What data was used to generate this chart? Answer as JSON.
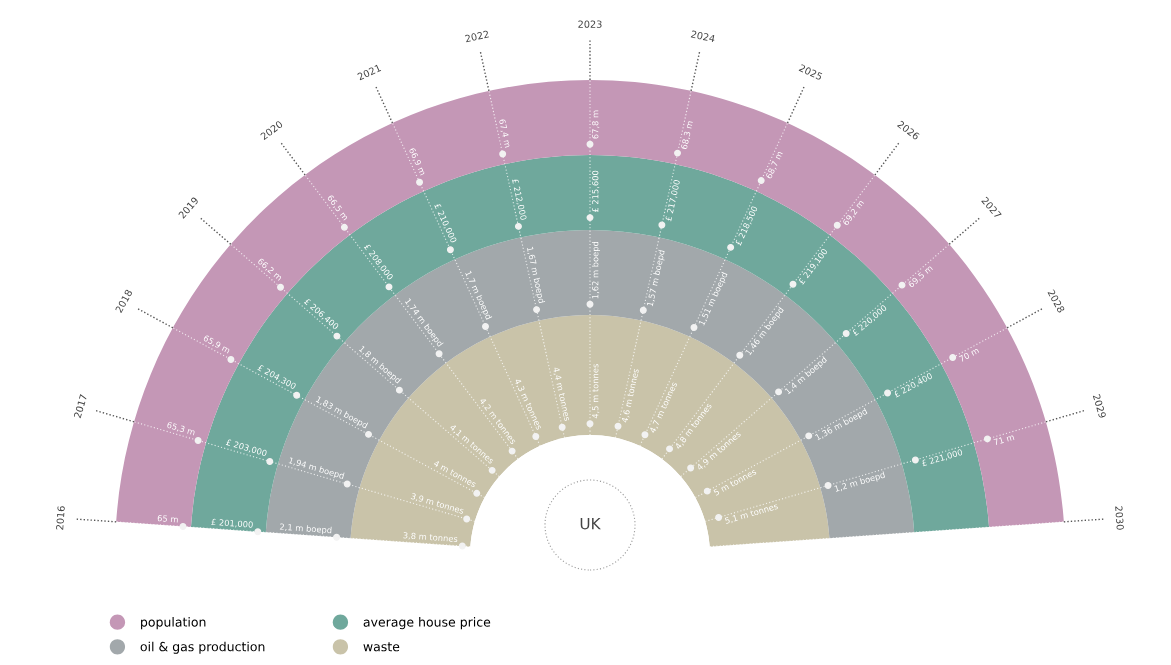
{
  "chart_data": {
    "type": "other",
    "categories": [
      "2016",
      "2017",
      "2018",
      "2019",
      "2020",
      "2021",
      "2022",
      "2023",
      "2024",
      "2025",
      "2026",
      "2027",
      "2028",
      "2029",
      "2030"
    ],
    "annotations": [
      "UK"
    ],
    "legend": "bottom left",
    "series": [
      {
        "name": "waste",
        "color": "#c9c3a9",
        "values": [
          3.8,
          3.9,
          4,
          4.1,
          4.2,
          4.3,
          4.4,
          4.5,
          4.6,
          4.7,
          4.8,
          4.9,
          5,
          5.1,
          null
        ],
        "value_labels": [
          "3,8 m tonnes",
          "3,9 m tonnes",
          "4 m tonnes",
          "4,1 m tonnes",
          "4,2 m tonnes",
          "4,3 m tonnes",
          "4,4 m tonnes",
          "4,5 m tonnes",
          "4,6 m tonnes",
          "4,7 m tonnes",
          "4,8 m tonnes",
          "4,9 m tonnes",
          "5 m tonnes",
          "5,1 m tonnes",
          null
        ]
      },
      {
        "name": "oil & gas production",
        "color": "#a2a8ab",
        "values": [
          2.1,
          1.94,
          1.83,
          1.8,
          1.74,
          1.7,
          1.67,
          1.62,
          1.57,
          1.51,
          1.46,
          1.4,
          1.36,
          1.2,
          null
        ],
        "value_labels": [
          "2,1 m boepd",
          "1,94 m boepd",
          "1,83 m boepd",
          "1,8 m boepd",
          "1,74 m boepd",
          "1,7 m boepd",
          "1,67 m boepd",
          "1,62 m boepd",
          "1,57 m boepd",
          "1,51 m boepd",
          "1,46 m boepd",
          "1,4 m boepd",
          "1,36 m boepd",
          "1,2 m boepd",
          null
        ]
      },
      {
        "name": "average house price",
        "color": "#6fa89c",
        "values": [
          201000,
          203000,
          204300,
          206400,
          208000,
          210000,
          212000,
          215600,
          217000,
          218500,
          219100,
          220000,
          220400,
          221000,
          null
        ],
        "value_labels": [
          "£ 201,000",
          "£ 203,000",
          "£ 204,300",
          "£ 206,400",
          "£ 208,000",
          "£ 210,000",
          "£ 212,000",
          "£ 215,600",
          "£ 217,000",
          "£ 218,500",
          "£ 219,100",
          "£ 220,000",
          "£ 220,400",
          "£ 221,000",
          null
        ]
      },
      {
        "name": "population",
        "color": "#c497b6",
        "values": [
          65,
          65.3,
          65.9,
          66.2,
          66.5,
          66.9,
          67.4,
          67.8,
          68.3,
          68.7,
          69.2,
          69.5,
          70,
          71,
          null
        ],
        "value_labels": [
          "65 m",
          "65,3 m",
          "65,9 m",
          "66,2 m",
          "66,5 m",
          "66,9 m",
          "67,4 m",
          "67,8 m",
          "68,3 m",
          "68,7 m",
          "69,2 m",
          "69,5 m",
          "70 m",
          "71 m",
          null
        ]
      }
    ]
  }
}
